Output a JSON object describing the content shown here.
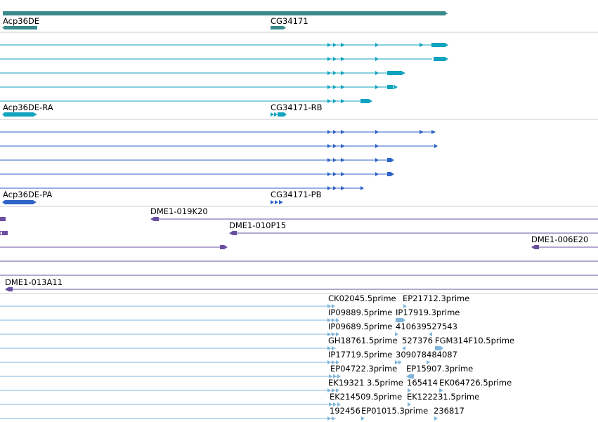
{
  "colors": {
    "gene": "#3a8a8a",
    "transcript_rna": "#12a3bf",
    "transcript_pa": "#2e63c7",
    "clone": "#6a4fa0",
    "est": "#7fb6dc",
    "separator": "#c8c8c8"
  },
  "tracks": {
    "gene": {
      "labels": [
        {
          "key": "acp36de",
          "text": "Acp36DE"
        },
        {
          "key": "cg34171",
          "text": "CG34171"
        }
      ]
    },
    "transcripts_rna": {
      "labels": [
        {
          "key": "acp36de_ra",
          "text": "Acp36DE-RA"
        },
        {
          "key": "cg34171_rb",
          "text": "CG34171-RB"
        }
      ]
    },
    "transcripts_pa": {
      "labels": [
        {
          "key": "acp36de_pa",
          "text": "Acp36DE-PA"
        },
        {
          "key": "cg34171_pb",
          "text": "CG34171-PB"
        }
      ]
    },
    "clones": {
      "labels": [
        {
          "key": "dme1_019k20",
          "text": "DME1-019K20"
        },
        {
          "key": "dme1_010p15",
          "text": "DME1-010P15"
        },
        {
          "key": "dme1_006e20",
          "text": "DME1-006E20"
        },
        {
          "key": "dme1_013a11",
          "text": "DME1-013A11"
        }
      ]
    },
    "ests": {
      "labels": [
        {
          "key": "ck02045",
          "text": "CK02045.5prime"
        },
        {
          "key": "ep21712",
          "text": "EP21712.3prime"
        },
        {
          "key": "ip09889",
          "text": "IP09889.5prime"
        },
        {
          "key": "ip17919",
          "text": "IP17919.3prime"
        },
        {
          "key": "ip09689",
          "text": "IP09689.5prime"
        },
        {
          "key": "n410639",
          "text": "410639"
        },
        {
          "key": "n527543",
          "text": "527543"
        },
        {
          "key": "gh18761",
          "text": "GH18761.5prime"
        },
        {
          "key": "n527376",
          "text": "527376"
        },
        {
          "key": "fgm314f10",
          "text": "FGM314F10.5prime"
        },
        {
          "key": "ip17719",
          "text": "IP17719.5prime"
        },
        {
          "key": "n309078",
          "text": "309078"
        },
        {
          "key": "n484087",
          "text": "484087"
        },
        {
          "key": "ep04722",
          "text": "EP04722.3prime"
        },
        {
          "key": "ep15907",
          "text": "EP15907.3prime"
        },
        {
          "key": "ek19321",
          "text": "EK19321 3.5prime"
        },
        {
          "key": "n165414",
          "text": "165414"
        },
        {
          "key": "ek064726",
          "text": "EK064726.5prime"
        },
        {
          "key": "ek214509",
          "text": "EK214509.5prime"
        },
        {
          "key": "ek122231",
          "text": "EK122231.5prime"
        },
        {
          "key": "n192456",
          "text": "192456"
        },
        {
          "key": "ep01015",
          "text": "EP01015.3prime"
        },
        {
          "key": "n236817",
          "text": "236817"
        }
      ]
    }
  }
}
